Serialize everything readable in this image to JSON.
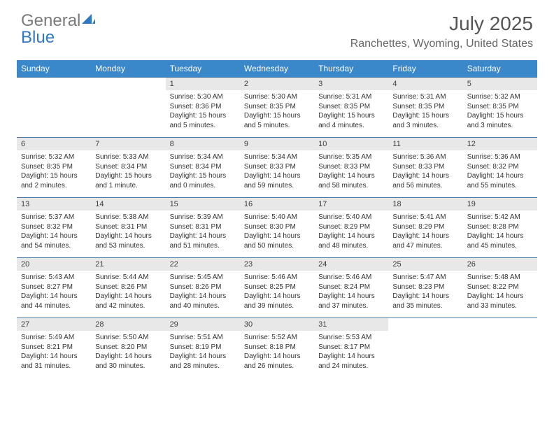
{
  "brand": {
    "part1": "General",
    "part2": "Blue"
  },
  "title": "July 2025",
  "location": "Ranchettes, Wyoming, United States",
  "colors": {
    "header_bg": "#3a87c9",
    "daynum_bg": "#e8e8e8",
    "border": "#4a7aa8",
    "brand_gray": "#7a7a7a",
    "brand_blue": "#2f78c2"
  },
  "day_names": [
    "Sunday",
    "Monday",
    "Tuesday",
    "Wednesday",
    "Thursday",
    "Friday",
    "Saturday"
  ],
  "weeks": [
    [
      null,
      null,
      {
        "n": "1",
        "sr": "Sunrise: 5:30 AM",
        "ss": "Sunset: 8:36 PM",
        "dl": "Daylight: 15 hours and 5 minutes."
      },
      {
        "n": "2",
        "sr": "Sunrise: 5:30 AM",
        "ss": "Sunset: 8:35 PM",
        "dl": "Daylight: 15 hours and 5 minutes."
      },
      {
        "n": "3",
        "sr": "Sunrise: 5:31 AM",
        "ss": "Sunset: 8:35 PM",
        "dl": "Daylight: 15 hours and 4 minutes."
      },
      {
        "n": "4",
        "sr": "Sunrise: 5:31 AM",
        "ss": "Sunset: 8:35 PM",
        "dl": "Daylight: 15 hours and 3 minutes."
      },
      {
        "n": "5",
        "sr": "Sunrise: 5:32 AM",
        "ss": "Sunset: 8:35 PM",
        "dl": "Daylight: 15 hours and 3 minutes."
      }
    ],
    [
      {
        "n": "6",
        "sr": "Sunrise: 5:32 AM",
        "ss": "Sunset: 8:35 PM",
        "dl": "Daylight: 15 hours and 2 minutes."
      },
      {
        "n": "7",
        "sr": "Sunrise: 5:33 AM",
        "ss": "Sunset: 8:34 PM",
        "dl": "Daylight: 15 hours and 1 minute."
      },
      {
        "n": "8",
        "sr": "Sunrise: 5:34 AM",
        "ss": "Sunset: 8:34 PM",
        "dl": "Daylight: 15 hours and 0 minutes."
      },
      {
        "n": "9",
        "sr": "Sunrise: 5:34 AM",
        "ss": "Sunset: 8:33 PM",
        "dl": "Daylight: 14 hours and 59 minutes."
      },
      {
        "n": "10",
        "sr": "Sunrise: 5:35 AM",
        "ss": "Sunset: 8:33 PM",
        "dl": "Daylight: 14 hours and 58 minutes."
      },
      {
        "n": "11",
        "sr": "Sunrise: 5:36 AM",
        "ss": "Sunset: 8:33 PM",
        "dl": "Daylight: 14 hours and 56 minutes."
      },
      {
        "n": "12",
        "sr": "Sunrise: 5:36 AM",
        "ss": "Sunset: 8:32 PM",
        "dl": "Daylight: 14 hours and 55 minutes."
      }
    ],
    [
      {
        "n": "13",
        "sr": "Sunrise: 5:37 AM",
        "ss": "Sunset: 8:32 PM",
        "dl": "Daylight: 14 hours and 54 minutes."
      },
      {
        "n": "14",
        "sr": "Sunrise: 5:38 AM",
        "ss": "Sunset: 8:31 PM",
        "dl": "Daylight: 14 hours and 53 minutes."
      },
      {
        "n": "15",
        "sr": "Sunrise: 5:39 AM",
        "ss": "Sunset: 8:31 PM",
        "dl": "Daylight: 14 hours and 51 minutes."
      },
      {
        "n": "16",
        "sr": "Sunrise: 5:40 AM",
        "ss": "Sunset: 8:30 PM",
        "dl": "Daylight: 14 hours and 50 minutes."
      },
      {
        "n": "17",
        "sr": "Sunrise: 5:40 AM",
        "ss": "Sunset: 8:29 PM",
        "dl": "Daylight: 14 hours and 48 minutes."
      },
      {
        "n": "18",
        "sr": "Sunrise: 5:41 AM",
        "ss": "Sunset: 8:29 PM",
        "dl": "Daylight: 14 hours and 47 minutes."
      },
      {
        "n": "19",
        "sr": "Sunrise: 5:42 AM",
        "ss": "Sunset: 8:28 PM",
        "dl": "Daylight: 14 hours and 45 minutes."
      }
    ],
    [
      {
        "n": "20",
        "sr": "Sunrise: 5:43 AM",
        "ss": "Sunset: 8:27 PM",
        "dl": "Daylight: 14 hours and 44 minutes."
      },
      {
        "n": "21",
        "sr": "Sunrise: 5:44 AM",
        "ss": "Sunset: 8:26 PM",
        "dl": "Daylight: 14 hours and 42 minutes."
      },
      {
        "n": "22",
        "sr": "Sunrise: 5:45 AM",
        "ss": "Sunset: 8:26 PM",
        "dl": "Daylight: 14 hours and 40 minutes."
      },
      {
        "n": "23",
        "sr": "Sunrise: 5:46 AM",
        "ss": "Sunset: 8:25 PM",
        "dl": "Daylight: 14 hours and 39 minutes."
      },
      {
        "n": "24",
        "sr": "Sunrise: 5:46 AM",
        "ss": "Sunset: 8:24 PM",
        "dl": "Daylight: 14 hours and 37 minutes."
      },
      {
        "n": "25",
        "sr": "Sunrise: 5:47 AM",
        "ss": "Sunset: 8:23 PM",
        "dl": "Daylight: 14 hours and 35 minutes."
      },
      {
        "n": "26",
        "sr": "Sunrise: 5:48 AM",
        "ss": "Sunset: 8:22 PM",
        "dl": "Daylight: 14 hours and 33 minutes."
      }
    ],
    [
      {
        "n": "27",
        "sr": "Sunrise: 5:49 AM",
        "ss": "Sunset: 8:21 PM",
        "dl": "Daylight: 14 hours and 31 minutes."
      },
      {
        "n": "28",
        "sr": "Sunrise: 5:50 AM",
        "ss": "Sunset: 8:20 PM",
        "dl": "Daylight: 14 hours and 30 minutes."
      },
      {
        "n": "29",
        "sr": "Sunrise: 5:51 AM",
        "ss": "Sunset: 8:19 PM",
        "dl": "Daylight: 14 hours and 28 minutes."
      },
      {
        "n": "30",
        "sr": "Sunrise: 5:52 AM",
        "ss": "Sunset: 8:18 PM",
        "dl": "Daylight: 14 hours and 26 minutes."
      },
      {
        "n": "31",
        "sr": "Sunrise: 5:53 AM",
        "ss": "Sunset: 8:17 PM",
        "dl": "Daylight: 14 hours and 24 minutes."
      },
      null,
      null
    ]
  ]
}
